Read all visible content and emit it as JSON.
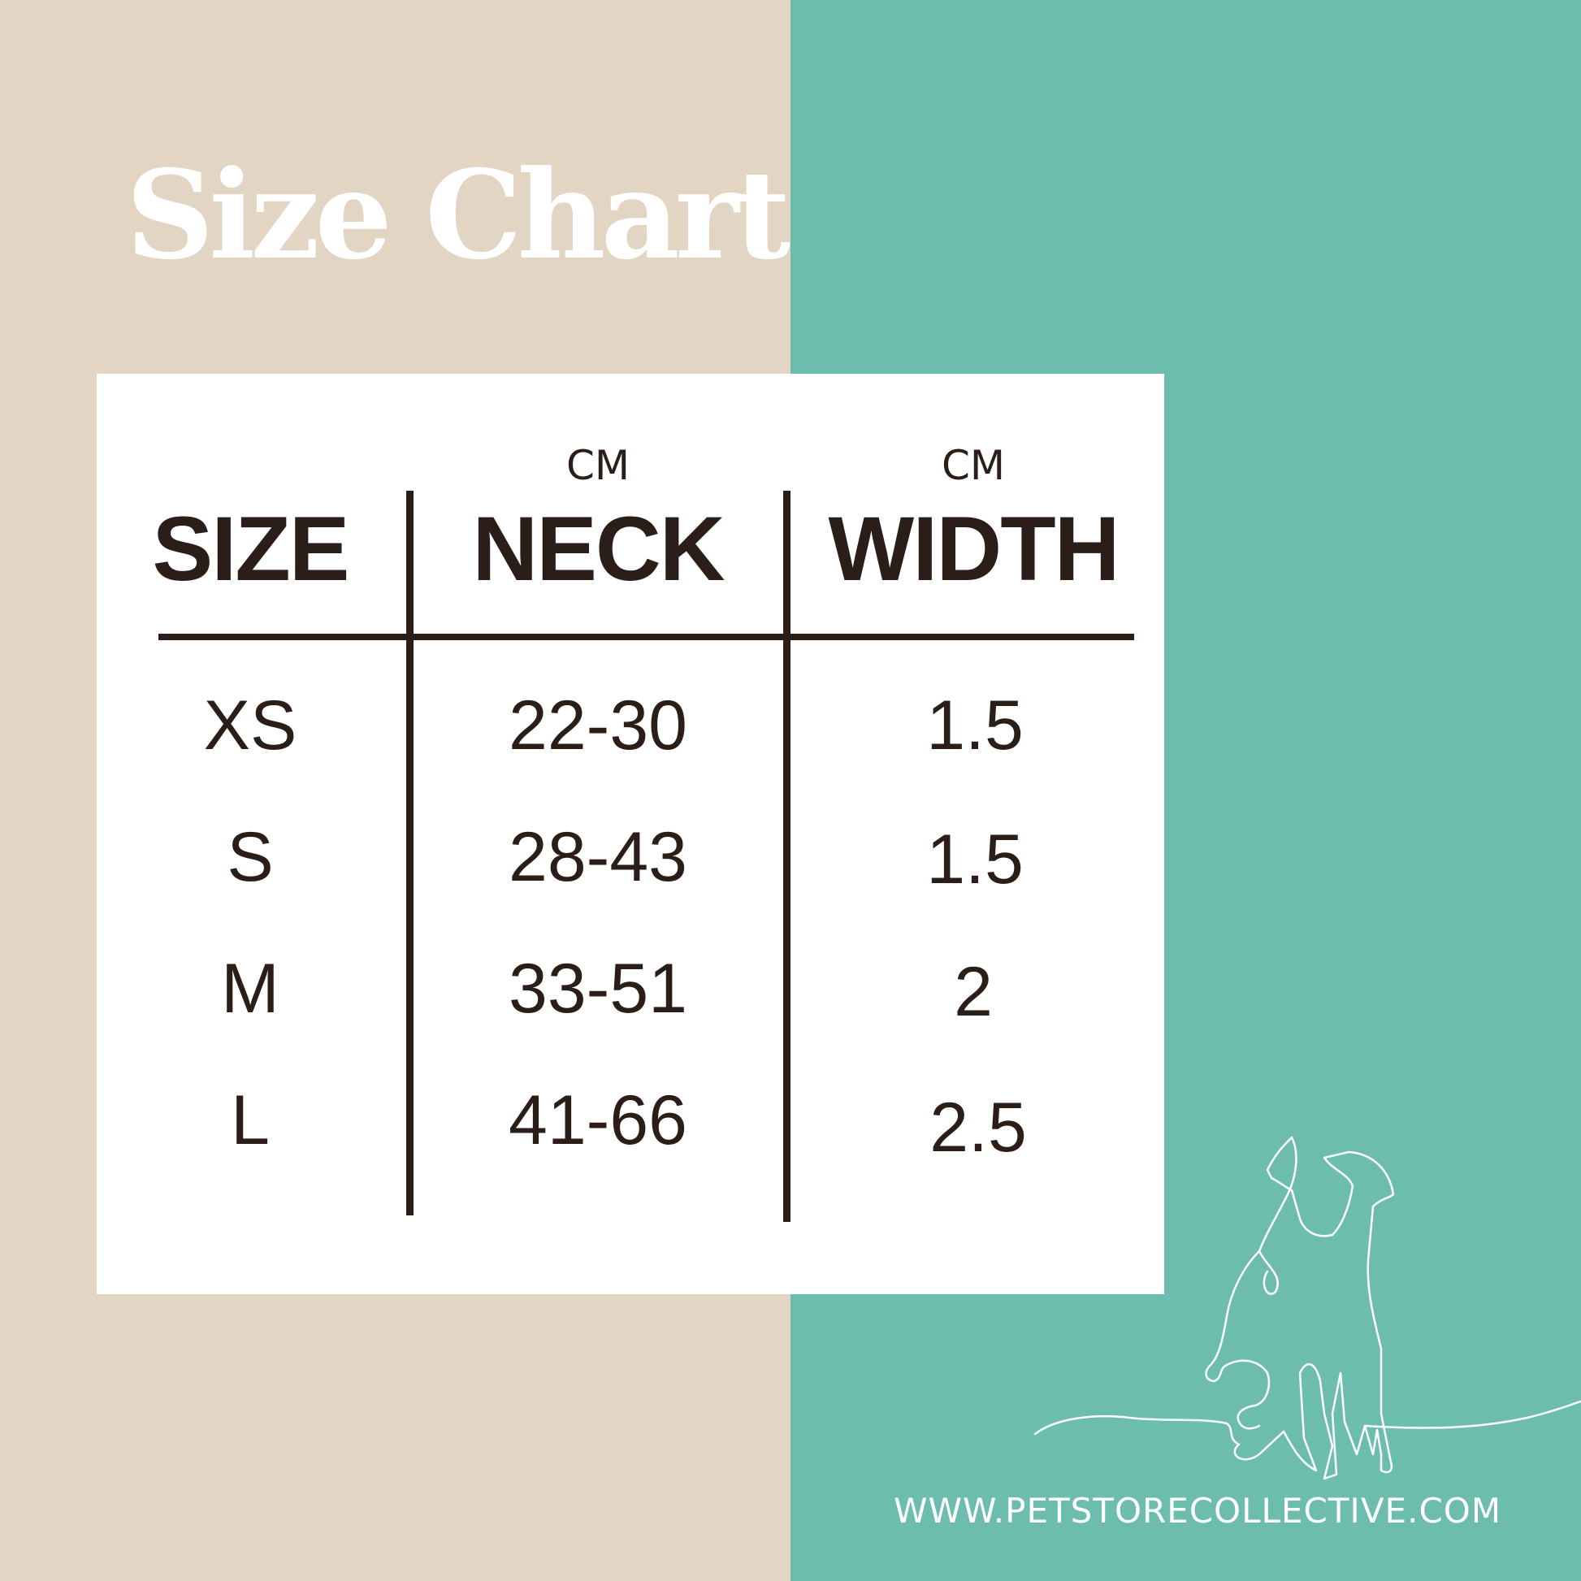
{
  "title": "Size Chart",
  "table": {
    "headers": [
      {
        "label": "SIZE",
        "unit": ""
      },
      {
        "label": "NECK",
        "unit": "CM"
      },
      {
        "label": "WIDTH",
        "unit": "CM"
      }
    ],
    "rows": [
      {
        "size": "XS",
        "neck": "22-30",
        "width": "1.5"
      },
      {
        "size": "S",
        "neck": "28-43",
        "width": "1.5"
      },
      {
        "size": "M",
        "neck": "33-51",
        "width": "2"
      },
      {
        "size": "L",
        "neck": "41-66",
        "width": "2.5"
      }
    ]
  },
  "footer": {
    "url": "WWW.PETSTORECOLLECTIVE.COM"
  },
  "colors": {
    "left_bg": "#e3d5c4",
    "right_bg": "#6dbdae",
    "text": "#2b1d17"
  },
  "icons": {
    "illustration": "dog-line-art"
  }
}
